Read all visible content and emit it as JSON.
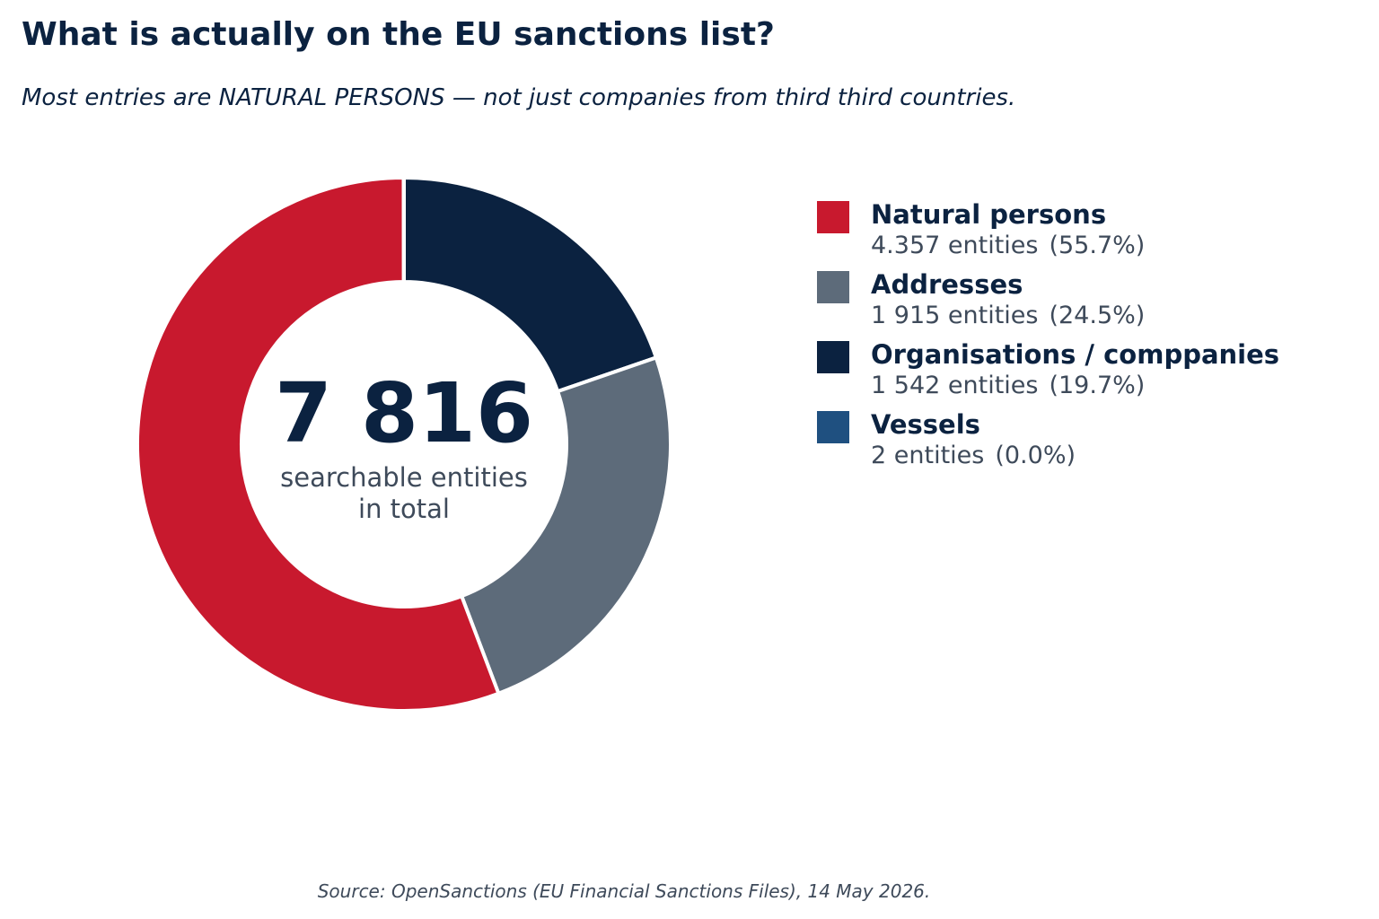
{
  "title": "What is actually on the EU sanctions list?",
  "subtitle": "Most entries are NATURAL PERSONS — not just companies from third third countries.",
  "source": "Source: OpenSanctions (EU Financial Sanctions Files), 14 May 2026.",
  "center": {
    "total": "7 816",
    "label_line1": "searchable entities",
    "label_line2": "in total"
  },
  "chart_data": {
    "type": "pie",
    "donut": true,
    "title": "What is actually on the EU sanctions list?",
    "legend_position": "right",
    "total": 7816,
    "slices": [
      {
        "name": "Natural persons",
        "value": 4357,
        "value_label": "4.357 entities",
        "percent_label": "(55.7%)",
        "color": "#c8192e"
      },
      {
        "name": "Addresses",
        "value": 1915,
        "value_label": "1 915 entities",
        "percent_label": "(24.5%)",
        "color": "#5d6b7a"
      },
      {
        "name": "Organisations / comppanies",
        "value": 1542,
        "value_label": "1 542 entities",
        "percent_label": "(19.7%)",
        "color": "#0b2240"
      },
      {
        "name": "Vessels",
        "value": 2,
        "value_label": "2 entities",
        "percent_label": "(0.0%)",
        "color": "#1f5080"
      }
    ],
    "draw_order": [
      2,
      1,
      0,
      3
    ]
  }
}
